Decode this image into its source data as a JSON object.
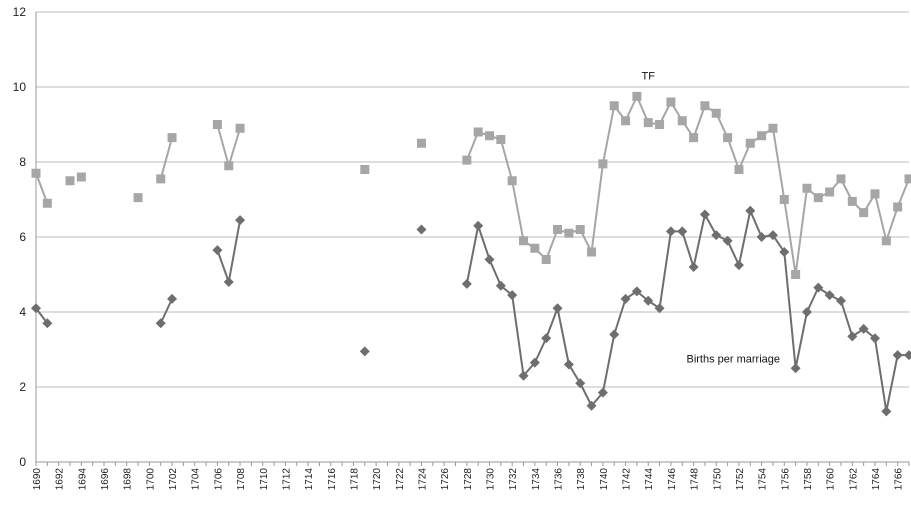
{
  "chart_data": {
    "type": "line",
    "title": "",
    "xlabel": "",
    "ylabel": "",
    "ylim": [
      0,
      12
    ],
    "xlim": [
      1690,
      1767
    ],
    "yticks": [
      0,
      2,
      4,
      6,
      8,
      10,
      12
    ],
    "xticks": [
      1690,
      1692,
      1694,
      1696,
      1698,
      1700,
      1702,
      1704,
      1706,
      1708,
      1710,
      1712,
      1714,
      1716,
      1718,
      1720,
      1722,
      1724,
      1726,
      1728,
      1730,
      1732,
      1734,
      1736,
      1738,
      1740,
      1742,
      1744,
      1746,
      1748,
      1750,
      1752,
      1754,
      1756,
      1758,
      1760,
      1762,
      1764,
      1766
    ],
    "grid": "horizontal",
    "annotations": [
      {
        "text": "TF",
        "x": 1744.0,
        "y": 10.2
      },
      {
        "text": "Births per marriage",
        "x": 1751.5,
        "y": 2.65
      }
    ],
    "series": [
      {
        "marker": "square",
        "color": "#a6a6a6",
        "points": [
          [
            1690,
            7.7
          ],
          [
            1691,
            6.9
          ],
          [
            1693,
            7.5
          ],
          [
            1694,
            7.6
          ],
          [
            1699,
            7.05
          ],
          [
            1701,
            7.55
          ],
          [
            1702,
            8.65
          ],
          [
            1706,
            9.0
          ],
          [
            1707,
            7.9
          ],
          [
            1708,
            8.9
          ],
          [
            1719,
            7.8
          ],
          [
            1724,
            8.5
          ],
          [
            1728,
            8.05
          ],
          [
            1729,
            8.8
          ],
          [
            1730,
            8.7
          ],
          [
            1731,
            8.6
          ],
          [
            1732,
            7.5
          ],
          [
            1733,
            5.9
          ],
          [
            1734,
            5.7
          ],
          [
            1735,
            5.4
          ],
          [
            1736,
            6.2
          ],
          [
            1737,
            6.1
          ],
          [
            1738,
            6.2
          ],
          [
            1739,
            5.6
          ],
          [
            1740,
            7.95
          ],
          [
            1741,
            9.5
          ],
          [
            1742,
            9.1
          ],
          [
            1743,
            9.75
          ],
          [
            1744,
            9.05
          ],
          [
            1745,
            9.0
          ],
          [
            1746,
            9.6
          ],
          [
            1747,
            9.1
          ],
          [
            1748,
            8.65
          ],
          [
            1749,
            9.5
          ],
          [
            1750,
            9.3
          ],
          [
            1751,
            8.65
          ],
          [
            1752,
            7.8
          ],
          [
            1753,
            8.5
          ],
          [
            1754,
            8.7
          ],
          [
            1755,
            8.9
          ],
          [
            1756,
            7.0
          ],
          [
            1757,
            5.0
          ],
          [
            1758,
            7.3
          ],
          [
            1759,
            7.05
          ],
          [
            1760,
            7.2
          ],
          [
            1761,
            7.55
          ],
          [
            1762,
            6.95
          ],
          [
            1763,
            6.65
          ],
          [
            1764,
            7.15
          ],
          [
            1765,
            5.9
          ],
          [
            1766,
            6.8
          ],
          [
            1767,
            7.55
          ]
        ],
        "segments": [
          [
            1690,
            1691
          ],
          [
            1701,
            1702
          ],
          [
            1706,
            1707,
            1708
          ],
          [
            1728,
            1729,
            1730,
            1731,
            1732,
            1733,
            1734,
            1735,
            1736,
            1737,
            1738,
            1739,
            1740,
            1741,
            1742,
            1743,
            1744,
            1745,
            1746,
            1747,
            1748,
            1749,
            1750,
            1751,
            1752,
            1753,
            1754,
            1755,
            1756,
            1757,
            1758,
            1759,
            1760,
            1761,
            1762,
            1763,
            1764,
            1765,
            1766,
            1767
          ]
        ]
      },
      {
        "marker": "diamond",
        "color": "#6e6e6e",
        "points": [
          [
            1690,
            4.1
          ],
          [
            1691,
            3.7
          ],
          [
            1701,
            3.7
          ],
          [
            1702,
            4.35
          ],
          [
            1706,
            5.65
          ],
          [
            1707,
            4.8
          ],
          [
            1708,
            6.45
          ],
          [
            1719,
            2.95
          ],
          [
            1724,
            6.2
          ],
          [
            1728,
            4.75
          ],
          [
            1729,
            6.3
          ],
          [
            1730,
            5.4
          ],
          [
            1731,
            4.7
          ],
          [
            1732,
            4.45
          ],
          [
            1733,
            2.3
          ],
          [
            1734,
            2.65
          ],
          [
            1735,
            3.3
          ],
          [
            1736,
            4.1
          ],
          [
            1737,
            2.6
          ],
          [
            1738,
            2.1
          ],
          [
            1739,
            1.5
          ],
          [
            1740,
            1.85
          ],
          [
            1741,
            3.4
          ],
          [
            1742,
            4.35
          ],
          [
            1743,
            4.55
          ],
          [
            1744,
            4.3
          ],
          [
            1745,
            4.1
          ],
          [
            1746,
            6.15
          ],
          [
            1747,
            6.15
          ],
          [
            1748,
            5.2
          ],
          [
            1749,
            6.6
          ],
          [
            1750,
            6.05
          ],
          [
            1751,
            5.9
          ],
          [
            1752,
            5.25
          ],
          [
            1753,
            6.7
          ],
          [
            1754,
            6.0
          ],
          [
            1755,
            6.05
          ],
          [
            1756,
            5.6
          ],
          [
            1757,
            2.5
          ],
          [
            1758,
            4.0
          ],
          [
            1759,
            4.65
          ],
          [
            1760,
            4.45
          ],
          [
            1761,
            4.3
          ],
          [
            1762,
            3.35
          ],
          [
            1763,
            3.55
          ],
          [
            1764,
            3.3
          ],
          [
            1765,
            1.35
          ],
          [
            1766,
            2.85
          ],
          [
            1767,
            2.85
          ]
        ],
        "segments": [
          [
            1690,
            1691
          ],
          [
            1701,
            1702
          ],
          [
            1706,
            1707,
            1708
          ],
          [
            1728,
            1729,
            1730,
            1731,
            1732,
            1733,
            1734,
            1735,
            1736,
            1737,
            1738,
            1739,
            1740,
            1741,
            1742,
            1743,
            1744,
            1745,
            1746,
            1747,
            1748,
            1749,
            1750,
            1751,
            1752,
            1753,
            1754,
            1755,
            1756,
            1757,
            1758,
            1759,
            1760,
            1761,
            1762,
            1763,
            1764,
            1765,
            1766,
            1767
          ]
        ]
      }
    ]
  }
}
